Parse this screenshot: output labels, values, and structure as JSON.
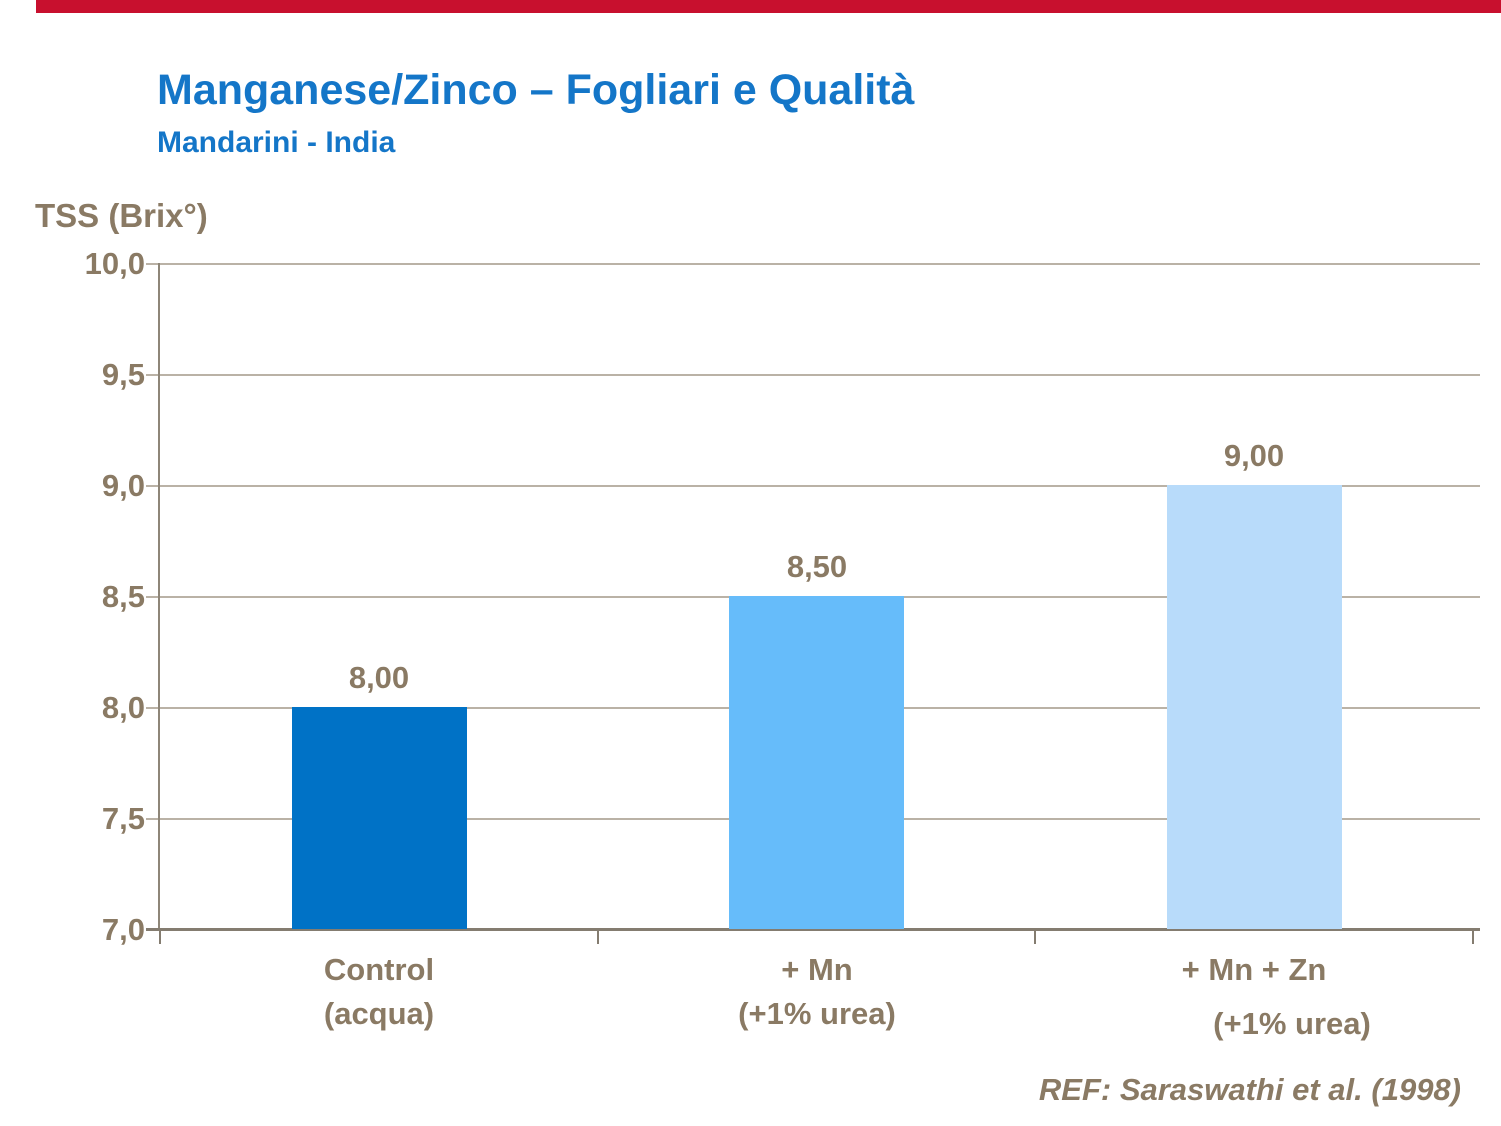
{
  "slide": {
    "title": "Manganese/Zinco – Fogliari e Qualità",
    "subtitle": "Mandarini - India",
    "reference": "REF: Saraswathi et al. (1998)",
    "accent_color": "#C8102E",
    "title_color": "#1476C8",
    "text_color": "#8A7A64"
  },
  "chart_data": {
    "type": "bar",
    "title": "",
    "xlabel": "",
    "ylabel": "TSS (Brix°)",
    "categories": [
      "Control (acqua)",
      "+ Mn (+1% urea)",
      "+ Mn + Zn (+1% urea)"
    ],
    "category_lines": [
      [
        "Control",
        "(acqua)"
      ],
      [
        "+ Mn",
        "(+1% urea)"
      ],
      [
        "+ Mn + Zn",
        "(+1% urea)"
      ]
    ],
    "values": [
      8.0,
      8.5,
      9.0
    ],
    "value_labels": [
      "8,00",
      "8,50",
      "9,00"
    ],
    "ylim": [
      7.0,
      10.0
    ],
    "ytick_step": 0.5,
    "yticks": [
      {
        "value": 10.0,
        "label": "10,0"
      },
      {
        "value": 9.5,
        "label": "9,5"
      },
      {
        "value": 9.0,
        "label": "9,0"
      },
      {
        "value": 8.5,
        "label": "8,5"
      },
      {
        "value": 8.0,
        "label": "8,0"
      },
      {
        "value": 7.5,
        "label": "7,5"
      },
      {
        "value": 7.0,
        "label": "7,0"
      }
    ],
    "grid": true,
    "legend": "none",
    "bar_colors": [
      "#0072C6",
      "#66BCFA",
      "#B8DBFA"
    ],
    "gridline_color": "#BAB2A6",
    "axis_color": "#847C70"
  }
}
